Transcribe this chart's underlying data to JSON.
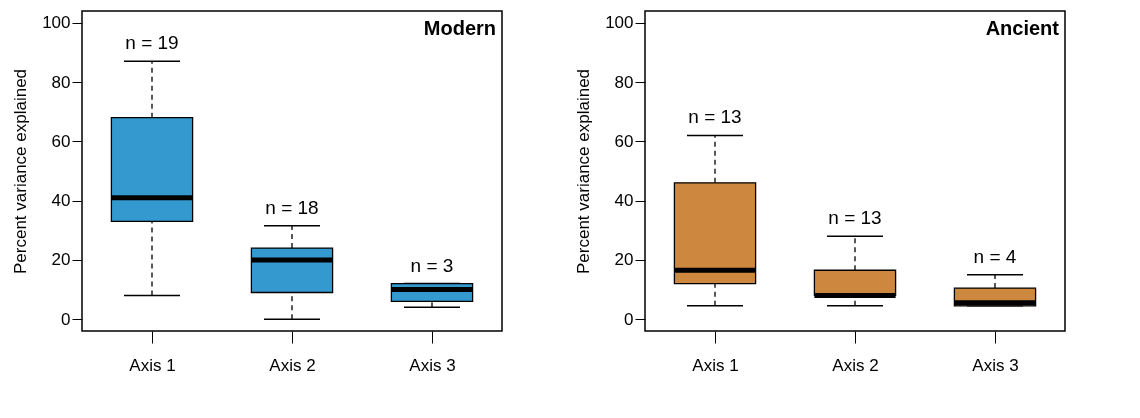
{
  "chart_data": [
    {
      "type": "box",
      "title": "Modern",
      "ylabel": "Percent variance explained",
      "categories": [
        "Axis 1",
        "Axis 2",
        "Axis 3"
      ],
      "color": "#3399cf",
      "boxes": [
        {
          "low": 8,
          "q1": 33,
          "median": 41,
          "q3": 68,
          "high": 87
        },
        {
          "low": 0,
          "q1": 9,
          "median": 20,
          "q3": 24,
          "high": 31.5
        },
        {
          "low": 4,
          "q1": 6,
          "median": 10,
          "q3": 12,
          "high": 12
        }
      ],
      "annotations": [
        "n = 19",
        "n = 18",
        "n = 3"
      ],
      "ylim": [
        -4,
        104
      ],
      "yticks": [
        0,
        20,
        40,
        60,
        80,
        100
      ],
      "grid": false
    },
    {
      "type": "box",
      "title": "Ancient",
      "ylabel": "Percent variance explained",
      "categories": [
        "Axis 1",
        "Axis 2",
        "Axis 3"
      ],
      "color": "#cd873f",
      "boxes": [
        {
          "low": 4.5,
          "q1": 12,
          "median": 16.5,
          "q3": 46,
          "high": 62
        },
        {
          "low": 4.5,
          "q1": 8,
          "median": 8,
          "q3": 16.5,
          "high": 28
        },
        {
          "low": 4.5,
          "q1": 4.5,
          "median": 5.5,
          "q3": 10.5,
          "high": 15
        }
      ],
      "annotations": [
        "n = 13",
        "n = 13",
        "n = 4"
      ],
      "ylim": [
        -4,
        104
      ],
      "yticks": [
        0,
        20,
        40,
        60,
        80,
        100
      ],
      "grid": false
    }
  ]
}
